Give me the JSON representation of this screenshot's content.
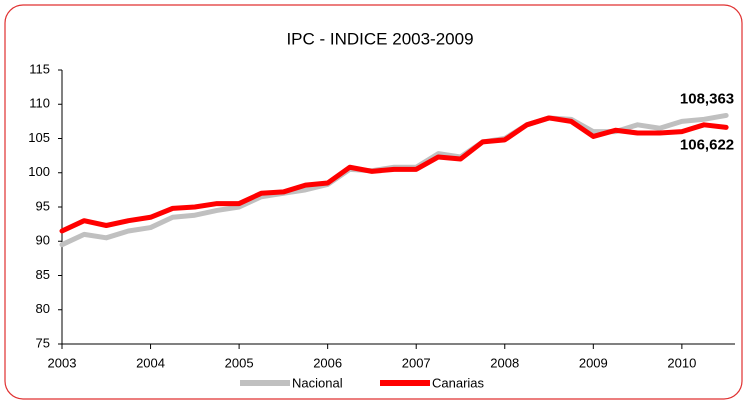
{
  "chart_data": {
    "type": "line",
    "title": "IPC - INDICE 2003-2009",
    "x": [
      2003,
      2003.25,
      2003.5,
      2003.75,
      2004,
      2004.25,
      2004.5,
      2004.75,
      2005,
      2005.25,
      2005.5,
      2005.75,
      2006,
      2006.25,
      2006.5,
      2006.75,
      2007,
      2007.25,
      2007.5,
      2007.75,
      2008,
      2008.25,
      2008.5,
      2008.75,
      2009,
      2009.25,
      2009.5,
      2009.75,
      2010,
      2010.25,
      2010.5
    ],
    "series": [
      {
        "name": "Nacional",
        "color": "#c0c0c0",
        "label_color": "#000000",
        "values": [
          89.5,
          91.0,
          90.5,
          91.5,
          92.0,
          93.5,
          93.8,
          94.5,
          95.0,
          96.5,
          97.0,
          97.5,
          98.3,
          100.5,
          100.3,
          100.8,
          100.8,
          102.8,
          102.3,
          104.5,
          105.0,
          107.0,
          108.0,
          107.8,
          106.0,
          106.0,
          107.0,
          106.5,
          107.5,
          107.8,
          108.363
        ],
        "value_labels": [
          null,
          null,
          null,
          null,
          null,
          null,
          null,
          null,
          null,
          null,
          null,
          null,
          null,
          null,
          null,
          null,
          null,
          null,
          null,
          null,
          null,
          null,
          null,
          null,
          null,
          null,
          null,
          null,
          null,
          null,
          "108,363"
        ]
      },
      {
        "name": "Canarias",
        "color": "#ff0000",
        "label_color": "#ff0000",
        "values": [
          91.5,
          93.0,
          92.3,
          93.0,
          93.5,
          94.8,
          95.0,
          95.5,
          95.5,
          97.0,
          97.2,
          98.2,
          98.5,
          100.8,
          100.2,
          100.5,
          100.5,
          102.3,
          102.0,
          104.5,
          104.8,
          107.0,
          108.0,
          107.5,
          105.3,
          106.2,
          105.8,
          105.8,
          106.0,
          107.0,
          106.622
        ],
        "value_labels": [
          null,
          null,
          null,
          null,
          null,
          null,
          null,
          null,
          null,
          null,
          null,
          null,
          null,
          null,
          null,
          null,
          null,
          null,
          null,
          null,
          null,
          null,
          null,
          null,
          null,
          null,
          null,
          null,
          null,
          null,
          "106,622"
        ]
      }
    ],
    "xlim": [
      2003,
      2010.6
    ],
    "xticks": [
      2003,
      2004,
      2005,
      2006,
      2007,
      2008,
      2009,
      2010
    ],
    "ylim": [
      75,
      115
    ],
    "yticks": [
      75,
      80,
      85,
      90,
      95,
      100,
      105,
      110,
      115
    ],
    "grid": false,
    "legend": "bottom"
  }
}
